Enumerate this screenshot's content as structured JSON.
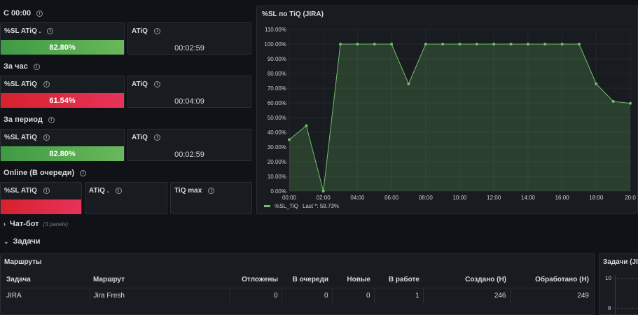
{
  "sections": {
    "since_midnight": "С 00:00",
    "last_hour": "За час",
    "period": "За период",
    "online": "Online (В очереди)"
  },
  "blocks": [
    {
      "sl_title": "%SL ATiQ .",
      "sl_value": "82.80%",
      "sl_fraction": 0.828,
      "atiq_title": "ATiQ",
      "atiq_value": "00:02:59"
    },
    {
      "sl_title": "%SL ATiQ",
      "sl_value": "61.54%",
      "sl_fraction": 0.6154,
      "atiq_title": "ATiQ",
      "atiq_value": "00:04:09"
    },
    {
      "sl_title": "%SL ATiQ",
      "sl_value": "82.80%",
      "sl_fraction": 0.828,
      "atiq_title": "ATiQ",
      "atiq_value": "00:02:59"
    }
  ],
  "online": {
    "sl_title": "%SL ATiQ",
    "atiq_title": "ATiQ .",
    "tiq_title": "TiQ max"
  },
  "chart_panel": {
    "title": "%SL по TiQ (JIRA)",
    "legend": "%SL_TiQ",
    "legend_last": "Last *: 59.73%"
  },
  "chart_data": {
    "type": "area",
    "title": "%SL по TiQ (JIRA)",
    "x": [
      "00:00",
      "01:00",
      "02:00",
      "03:00",
      "04:00",
      "05:00",
      "06:00",
      "07:00",
      "08:00",
      "09:00",
      "10:00",
      "11:00",
      "12:00",
      "13:00",
      "14:00",
      "15:00",
      "16:00",
      "17:00",
      "18:00",
      "19:00",
      "20:00"
    ],
    "x_ticks": [
      "00:00",
      "02:00",
      "04:00",
      "06:00",
      "08:00",
      "10:00",
      "12:00",
      "14:00",
      "16:00",
      "18:00",
      "20:0"
    ],
    "series": [
      {
        "name": "%SL_TiQ",
        "color": "#73bf69",
        "values": [
          35,
          44.5,
          0,
          100,
          100,
          100,
          100,
          73,
          100,
          100,
          100,
          100,
          100,
          100,
          100,
          100,
          100,
          100,
          73,
          61,
          59.73
        ]
      }
    ],
    "y_ticks": [
      "0.00%",
      "10.00%",
      "20.00%",
      "30.00%",
      "40.00%",
      "50.00%",
      "60.00%",
      "70.00%",
      "80.00%",
      "90.00%",
      "100.00%",
      "110.00%"
    ],
    "ylim": [
      0,
      110
    ]
  },
  "collapsed_row": {
    "title": "Чат-бот",
    "note": "(3 panels)"
  },
  "tasks_row": {
    "title": "Задачи"
  },
  "routes_panel": {
    "title": "Маршруты",
    "columns": [
      "Задача",
      "Маршрут",
      "Отложены",
      "В очереди",
      "Новые",
      "В работе",
      "Создано (Н)",
      "Обработано (Н)"
    ],
    "rows": [
      [
        "JIRA",
        "Jira Fresh",
        "0",
        "0",
        "0",
        "1",
        "246",
        "249"
      ]
    ]
  },
  "tasks_panel": {
    "title": "Задачи (JI",
    "y_ticks": [
      "10",
      "8"
    ]
  },
  "colors": {
    "green": "#73bf69",
    "red": "#e02f44",
    "background": "#111217",
    "panel": "#181b1f"
  }
}
